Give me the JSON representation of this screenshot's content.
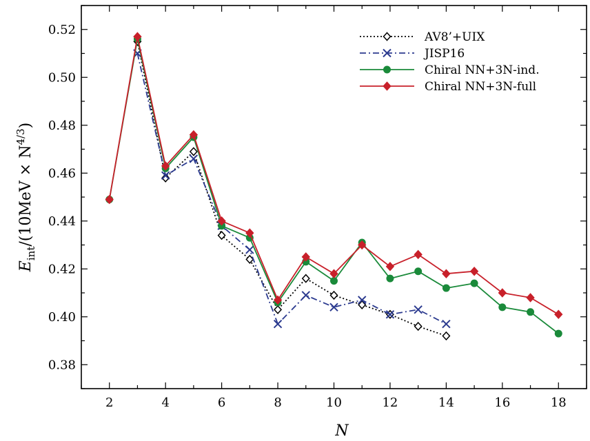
{
  "chart_data": {
    "type": "line",
    "xlabel": "N",
    "ylabel": {
      "base": "E",
      "sub": "int",
      "mid": "/(10MeV × N",
      "sup": "4/3",
      "end": ")"
    },
    "xlim": [
      1,
      19
    ],
    "ylim": [
      0.37,
      0.53
    ],
    "xticks": [
      2,
      4,
      6,
      8,
      10,
      12,
      14,
      16,
      18
    ],
    "yticks": [
      0.38,
      0.4,
      0.42,
      0.44,
      0.46,
      0.48,
      0.5,
      0.52
    ],
    "ytick_labels": [
      "0.38",
      "0.40",
      "0.42",
      "0.44",
      "0.46",
      "0.48",
      "0.50",
      "0.52"
    ],
    "legend_position": "top-right",
    "series": [
      {
        "name": "AV8’+UIX",
        "color": "#000000",
        "dash": "2,3",
        "marker": "diamond-open",
        "x": [
          3,
          4,
          5,
          6,
          7,
          8,
          9,
          10,
          11,
          12,
          13,
          14
        ],
        "y": [
          0.515,
          0.458,
          0.469,
          0.434,
          0.424,
          0.403,
          0.416,
          0.409,
          0.405,
          0.401,
          0.396,
          0.392
        ]
      },
      {
        "name": "JISP16",
        "color": "#2b3a8f",
        "dash": "9,4,2,4",
        "marker": "x",
        "x": [
          3,
          4,
          5,
          6,
          7,
          8,
          9,
          10,
          11,
          12,
          13,
          14
        ],
        "y": [
          0.51,
          0.459,
          0.466,
          0.438,
          0.428,
          0.397,
          0.409,
          0.404,
          0.407,
          0.401,
          0.403,
          0.397
        ]
      },
      {
        "name": "Chiral NN+3N-ind.",
        "color": "#1a8a3a",
        "dash": "",
        "marker": "circle",
        "x": [
          2,
          3,
          4,
          5,
          6,
          7,
          8,
          9,
          10,
          11,
          12,
          13,
          14,
          15,
          16,
          17,
          18
        ],
        "y": [
          0.449,
          0.516,
          0.462,
          0.475,
          0.438,
          0.433,
          0.406,
          0.423,
          0.415,
          0.431,
          0.416,
          0.419,
          0.412,
          0.414,
          0.404,
          0.402,
          0.393
        ]
      },
      {
        "name": "Chiral NN+3N-full",
        "color": "#c8202a",
        "dash": "",
        "marker": "diamond-filled",
        "x": [
          2,
          3,
          4,
          5,
          6,
          7,
          8,
          9,
          10,
          11,
          12,
          13,
          14,
          15,
          16,
          17,
          18
        ],
        "y": [
          0.449,
          0.517,
          0.463,
          0.476,
          0.44,
          0.435,
          0.407,
          0.425,
          0.418,
          0.43,
          0.421,
          0.426,
          0.418,
          0.419,
          0.41,
          0.408,
          0.401
        ]
      }
    ]
  }
}
